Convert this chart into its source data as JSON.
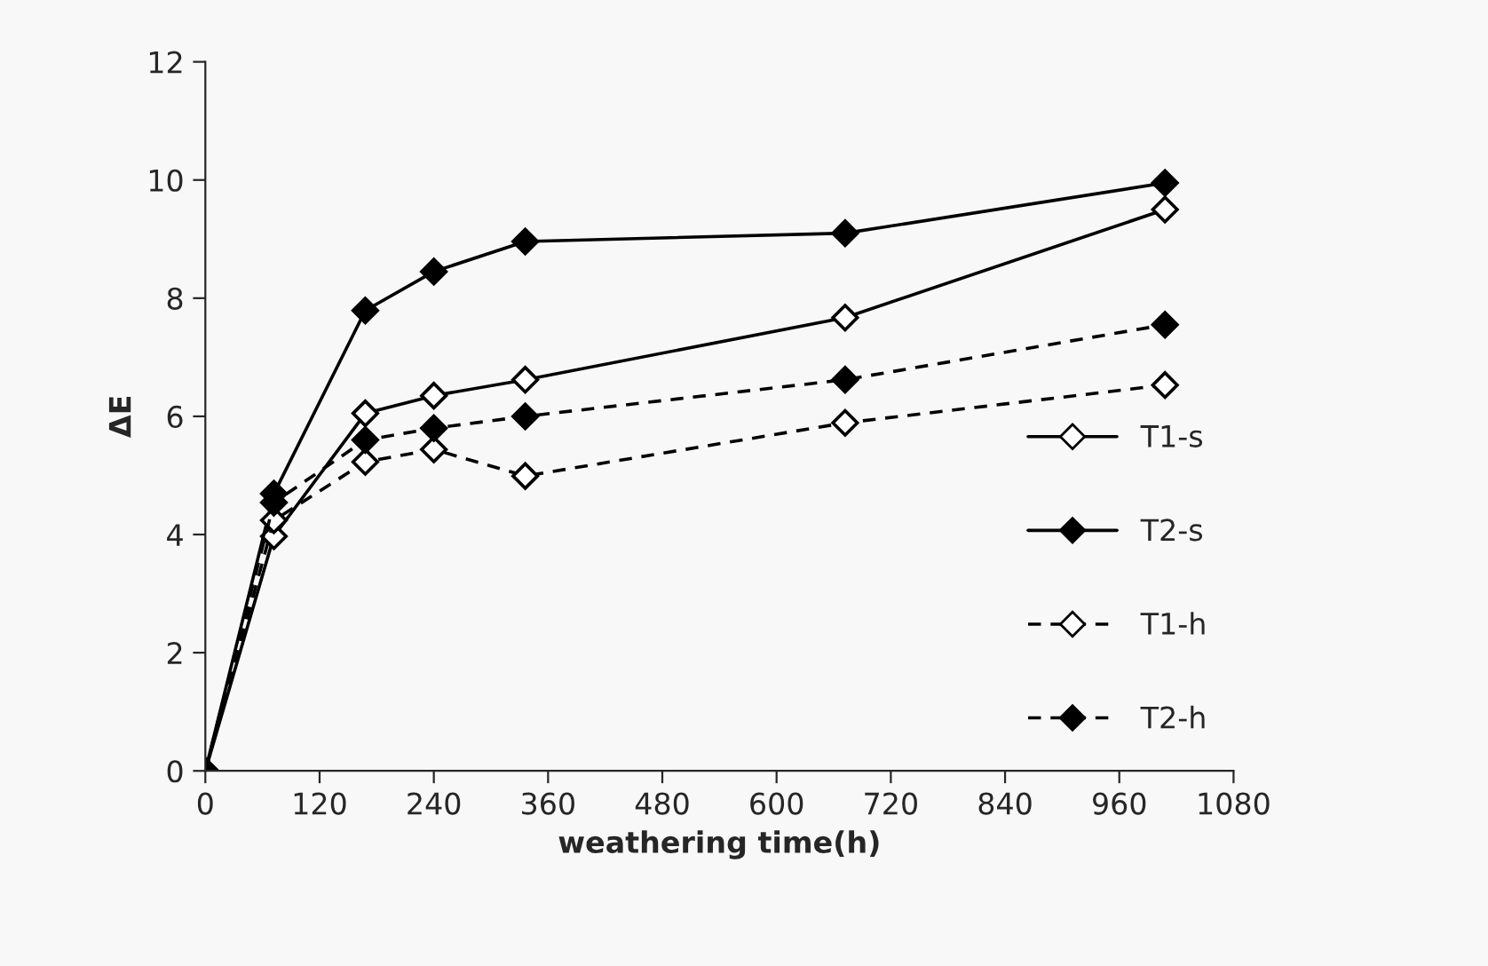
{
  "chart_data": {
    "type": "line",
    "xlabel": "weathering time(h)",
    "ylabel": "ΔE",
    "x": [
      0,
      72,
      168,
      240,
      336,
      672,
      1008
    ],
    "series": [
      {
        "name": "T1-s",
        "color": "#000000",
        "line_style": "solid",
        "values": [
          0,
          3.97,
          6.05,
          6.35,
          6.62,
          7.67,
          9.5
        ]
      },
      {
        "name": "T2-s",
        "color": "#000000",
        "line_style": "solid",
        "values": [
          0,
          4.69,
          7.79,
          8.45,
          8.96,
          9.1,
          9.95
        ]
      },
      {
        "name": "T1-h",
        "color": "#000000",
        "line_style": "dashed",
        "values": [
          0,
          4.24,
          5.23,
          5.44,
          4.99,
          5.89,
          6.53
        ]
      },
      {
        "name": "T2-h",
        "color": "#000000",
        "line_style": "dashed",
        "values": [
          0,
          4.54,
          5.6,
          5.8,
          6.0,
          6.62,
          7.55
        ]
      }
    ],
    "xlim": [
      0,
      1080
    ],
    "xticks": [
      0,
      120,
      240,
      360,
      480,
      600,
      720,
      840,
      960,
      1080
    ],
    "ylim": [
      0,
      12
    ],
    "yticks": [
      0,
      2,
      4,
      6,
      8,
      10,
      12
    ],
    "marker": "diamond",
    "legend": "right",
    "grid": false
  }
}
